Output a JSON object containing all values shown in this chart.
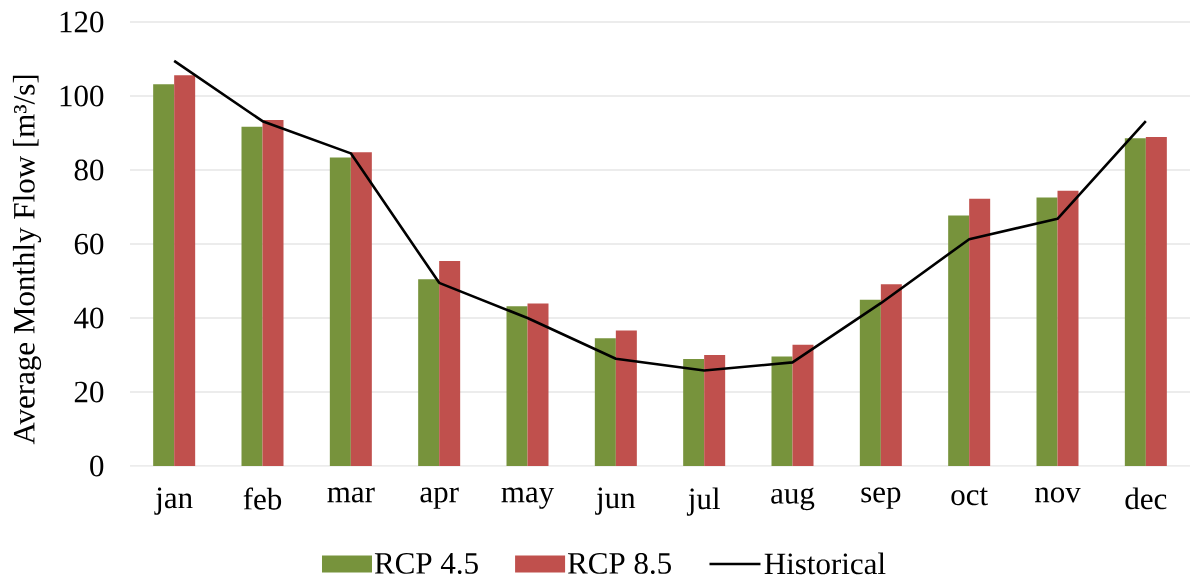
{
  "chart_data": {
    "type": "bar",
    "ylabel": "Average Monthly Flow [m³/s]",
    "categories": [
      "jan",
      "feb",
      "mar",
      "apr",
      "may",
      "jun",
      "jul",
      "aug",
      "sep",
      "oct",
      "nov",
      "dec"
    ],
    "series": [
      {
        "name": "RCP 4.5",
        "color": "#77933c",
        "values": [
          103.2,
          91.7,
          83.4,
          50.5,
          43.2,
          34.5,
          28.9,
          29.6,
          44.9,
          67.7,
          72.6,
          88.6
        ]
      },
      {
        "name": "RCP 8.5",
        "color": "#c0504d",
        "values": [
          105.6,
          93.5,
          84.8,
          55.4,
          43.9,
          36.6,
          30.0,
          32.8,
          49.1,
          72.2,
          74.4,
          88.9
        ]
      },
      {
        "name": "Historical",
        "type": "line",
        "color": "#000000",
        "values": [
          109.5,
          93.2,
          84.5,
          49.5,
          40.0,
          29.0,
          25.8,
          28.0,
          44.0,
          61.3,
          66.8,
          93.2
        ]
      }
    ],
    "ylim": [
      0,
      120
    ],
    "yticks": [
      0,
      20,
      40,
      60,
      80,
      100,
      120
    ],
    "grid": "y",
    "legend": "bottom"
  }
}
